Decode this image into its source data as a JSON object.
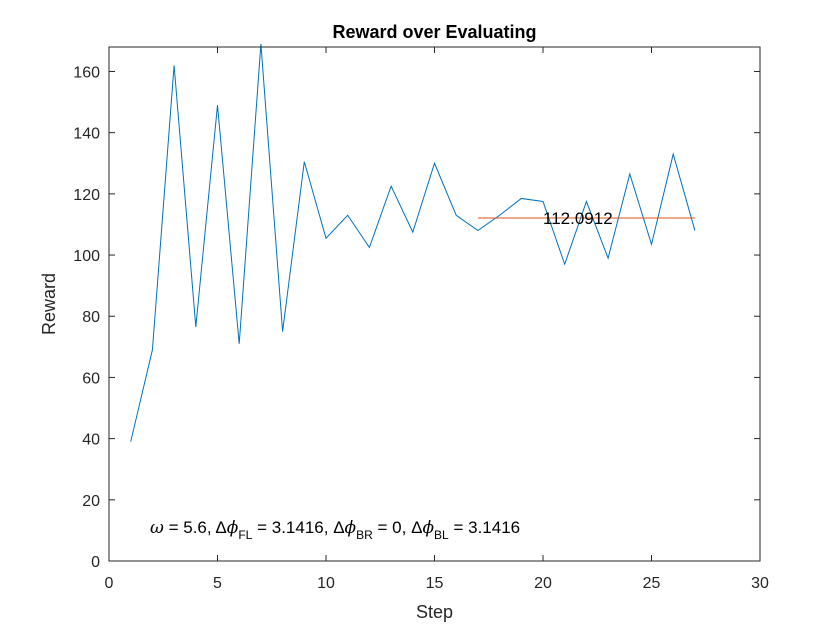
{
  "chart_data": {
    "type": "line",
    "title": "Reward over Evaluating",
    "xlabel": "Step",
    "ylabel": "Reward",
    "xlim": [
      0,
      30
    ],
    "ylim": [
      0,
      168
    ],
    "xticks": [
      0,
      5,
      10,
      15,
      20,
      25,
      30
    ],
    "yticks": [
      0,
      20,
      40,
      60,
      80,
      100,
      120,
      140,
      160
    ],
    "grid": false,
    "series": [
      {
        "color": "#0072BD",
        "x": [
          1,
          2,
          3,
          4,
          5,
          6,
          7,
          8,
          9,
          10,
          11,
          12,
          13,
          14,
          15,
          16,
          17,
          18,
          19,
          20,
          21,
          22,
          23,
          24,
          25,
          26,
          27
        ],
        "y": [
          39,
          69,
          162,
          76.5,
          149,
          71,
          169,
          75,
          130.5,
          105.5,
          113,
          102.5,
          122.5,
          107.5,
          130,
          113,
          108,
          113,
          118.5,
          117.5,
          97,
          117.5,
          99,
          126.5,
          103.5,
          133,
          108
        ]
      },
      {
        "color": "#D95319",
        "x": [
          17,
          27
        ],
        "y": [
          112.0912,
          112.0912
        ]
      }
    ],
    "annotations": {
      "mean_label": "112.0912",
      "params": {
        "omega_sym": "ω",
        "omega_rest": " = 5.6, ",
        "delta": "Δ",
        "phi": "ϕ",
        "fl_sub": "FL",
        "fl_rest": " = 3.1416, ",
        "br_sub": "BR",
        "br_rest": " = 0, ",
        "bl_sub": "BL",
        "bl_rest": " = 3.1416"
      }
    }
  }
}
